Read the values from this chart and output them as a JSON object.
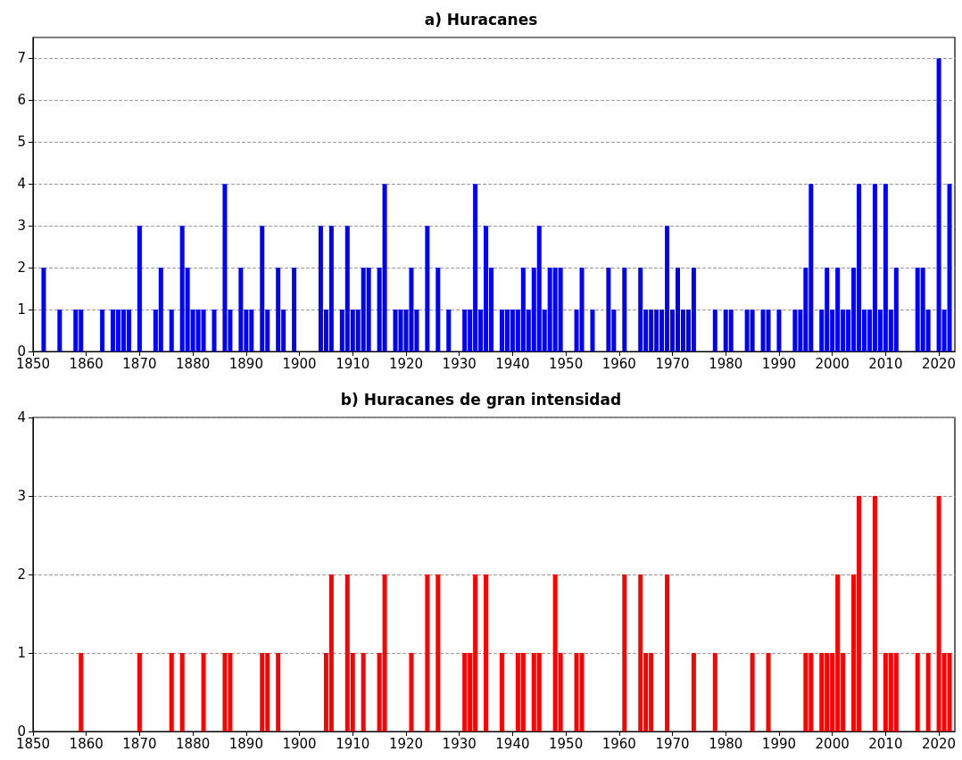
{
  "chart_data": [
    {
      "type": "bar",
      "title": "a) Huracanes",
      "color": "#0000ff",
      "xlim": [
        1850,
        2023
      ],
      "xticks": [
        1850,
        1860,
        1870,
        1880,
        1890,
        1900,
        1910,
        1920,
        1930,
        1940,
        1950,
        1960,
        1970,
        1980,
        1990,
        2000,
        2010,
        2020
      ],
      "ylim": [
        0,
        7.5
      ],
      "yticks": [
        0,
        1,
        2,
        3,
        4,
        5,
        6,
        7
      ],
      "grid": "y",
      "x": [
        1852,
        1855,
        1858,
        1859,
        1863,
        1865,
        1866,
        1867,
        1868,
        1870,
        1873,
        1874,
        1876,
        1878,
        1879,
        1880,
        1881,
        1882,
        1884,
        1886,
        1887,
        1889,
        1890,
        1891,
        1893,
        1894,
        1896,
        1897,
        1899,
        1904,
        1905,
        1906,
        1908,
        1909,
        1910,
        1911,
        1912,
        1913,
        1915,
        1916,
        1918,
        1919,
        1920,
        1921,
        1922,
        1924,
        1926,
        1928,
        1931,
        1932,
        1933,
        1934,
        1935,
        1936,
        1938,
        1939,
        1940,
        1941,
        1942,
        1943,
        1944,
        1945,
        1946,
        1947,
        1948,
        1949,
        1952,
        1953,
        1955,
        1958,
        1959,
        1961,
        1964,
        1965,
        1966,
        1967,
        1968,
        1969,
        1970,
        1971,
        1972,
        1973,
        1974,
        1978,
        1980,
        1981,
        1984,
        1985,
        1987,
        1988,
        1990,
        1993,
        1994,
        1995,
        1996,
        1998,
        1999,
        2000,
        2001,
        2002,
        2003,
        2004,
        2005,
        2006,
        2007,
        2008,
        2009,
        2010,
        2011,
        2012,
        2016,
        2017,
        2018,
        2020,
        2021,
        2022
      ],
      "values": [
        2,
        1,
        1,
        1,
        1,
        1,
        1,
        1,
        1,
        3,
        1,
        2,
        1,
        3,
        2,
        1,
        1,
        1,
        1,
        4,
        1,
        2,
        1,
        1,
        3,
        1,
        2,
        1,
        2,
        3,
        1,
        3,
        1,
        3,
        1,
        1,
        2,
        2,
        2,
        4,
        1,
        1,
        1,
        2,
        1,
        3,
        2,
        1,
        1,
        1,
        4,
        1,
        3,
        2,
        1,
        1,
        1,
        1,
        2,
        1,
        2,
        3,
        1,
        2,
        2,
        2,
        1,
        2,
        1,
        2,
        1,
        2,
        2,
        1,
        1,
        1,
        1,
        3,
        1,
        2,
        1,
        1,
        2,
        1,
        1,
        1,
        1,
        1,
        1,
        1,
        1,
        1,
        1,
        2,
        4,
        1,
        2,
        1,
        2,
        1,
        1,
        2,
        4,
        1,
        1,
        4,
        1,
        4,
        1,
        2,
        2,
        2,
        1,
        7,
        1,
        4
      ]
    },
    {
      "type": "bar",
      "title": "b) Huracanes de gran intensidad",
      "color": "#ff0000",
      "xlim": [
        1850,
        2023
      ],
      "xticks": [
        1850,
        1860,
        1870,
        1880,
        1890,
        1900,
        1910,
        1920,
        1930,
        1940,
        1950,
        1960,
        1970,
        1980,
        1990,
        2000,
        2010,
        2020
      ],
      "ylim": [
        0,
        4
      ],
      "yticks": [
        0,
        1,
        2,
        3,
        4
      ],
      "grid": "y",
      "x": [
        1859,
        1870,
        1876,
        1878,
        1882,
        1886,
        1887,
        1893,
        1894,
        1896,
        1905,
        1906,
        1909,
        1910,
        1912,
        1915,
        1916,
        1921,
        1924,
        1926,
        1931,
        1932,
        1933,
        1935,
        1938,
        1941,
        1942,
        1944,
        1945,
        1948,
        1949,
        1952,
        1953,
        1961,
        1964,
        1965,
        1966,
        1969,
        1974,
        1978,
        1985,
        1988,
        1995,
        1996,
        1998,
        1999,
        2000,
        2001,
        2002,
        2004,
        2005,
        2008,
        2010,
        2011,
        2012,
        2016,
        2018,
        2020,
        2021,
        2022
      ],
      "values": [
        1,
        1,
        1,
        1,
        1,
        1,
        1,
        1,
        1,
        1,
        1,
        2,
        2,
        1,
        1,
        1,
        2,
        1,
        2,
        2,
        1,
        1,
        2,
        2,
        1,
        1,
        1,
        1,
        1,
        2,
        1,
        1,
        1,
        2,
        2,
        1,
        1,
        2,
        1,
        1,
        1,
        1,
        1,
        1,
        1,
        1,
        1,
        2,
        1,
        2,
        3,
        3,
        1,
        1,
        1,
        1,
        1,
        3,
        1,
        1
      ]
    }
  ]
}
